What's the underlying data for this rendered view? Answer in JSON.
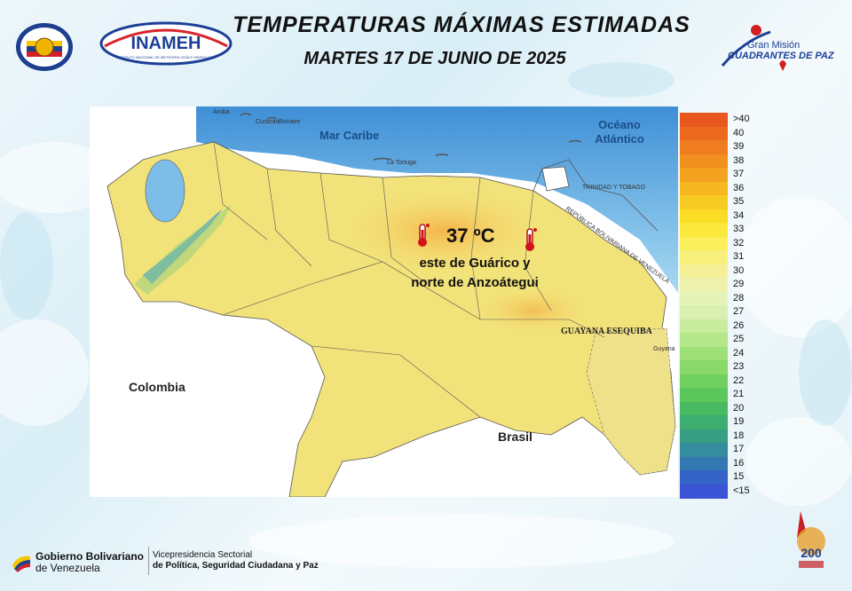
{
  "header": {
    "title": "TEMPERATURAS MÁXIMAS ESTIMADAS",
    "date": "MARTES 17 DE JUNIO DE 2025"
  },
  "logos": {
    "inameh": "INAMEH",
    "inameh_sub": "INSTITUTO NACIONAL DE METEOROLOGÍA E HIDROLOGÍA",
    "gmcp_line1": "Gran Misión",
    "gmcp_line2": "CUADRANTES DE PAZ",
    "bicentenario": "200"
  },
  "map": {
    "sea_labels": [
      "Mar Caribe",
      "Océano Atlántico"
    ],
    "country_labels": {
      "colombia": "Colombia",
      "brasil": "Brasil"
    },
    "region_labels": {
      "guayana": "GUAYANA ESEQUIBA",
      "trinidad": "TRINIDAD Y TOBAGO",
      "rbv": "REPÚBLICA BOLIVARIANA DE VENEZUELA",
      "aruba": "Aruba",
      "curazao": "Curazao",
      "bonaire": "Bonaire",
      "tortuga": "La Tortuga",
      "guyana": "Guyana"
    },
    "highlight": {
      "value": "37 ºC",
      "region_line1": "este de Guárico y",
      "region_line2": "norte de Anzoátegui"
    }
  },
  "legend": {
    "labels": [
      ">40",
      "40",
      "39",
      "38",
      "37",
      "36",
      "35",
      "34",
      "33",
      "32",
      "31",
      "30",
      "29",
      "28",
      "27",
      "26",
      "25",
      "24",
      "23",
      "22",
      "21",
      "20",
      "19",
      "18",
      "17",
      "16",
      "15",
      "<15"
    ],
    "colors": [
      "#e8581e",
      "#ec6a1e",
      "#ef7d1f",
      "#f1901f",
      "#f3a320",
      "#f6b720",
      "#f8cb22",
      "#fadc24",
      "#fbe83d",
      "#fbef5b",
      "#f8f07c",
      "#f5f098",
      "#eef2ae",
      "#e5f2b8",
      "#d9f0b2",
      "#c9ec9e",
      "#b5e68a",
      "#9fdf78",
      "#88d86a",
      "#70d060",
      "#5bc75c",
      "#48bb62",
      "#3ead70",
      "#389e84",
      "#358c9c",
      "#3478b3",
      "#3563c8",
      "#3a53d4"
    ]
  },
  "footer": {
    "gov_bold": "Gobierno Bolivariano",
    "gov_rest": "de Venezuela",
    "vice_line1": "Vicepresidencia Sectorial",
    "vice_line2": "de Política, Seguridad Ciudadana y Paz"
  }
}
